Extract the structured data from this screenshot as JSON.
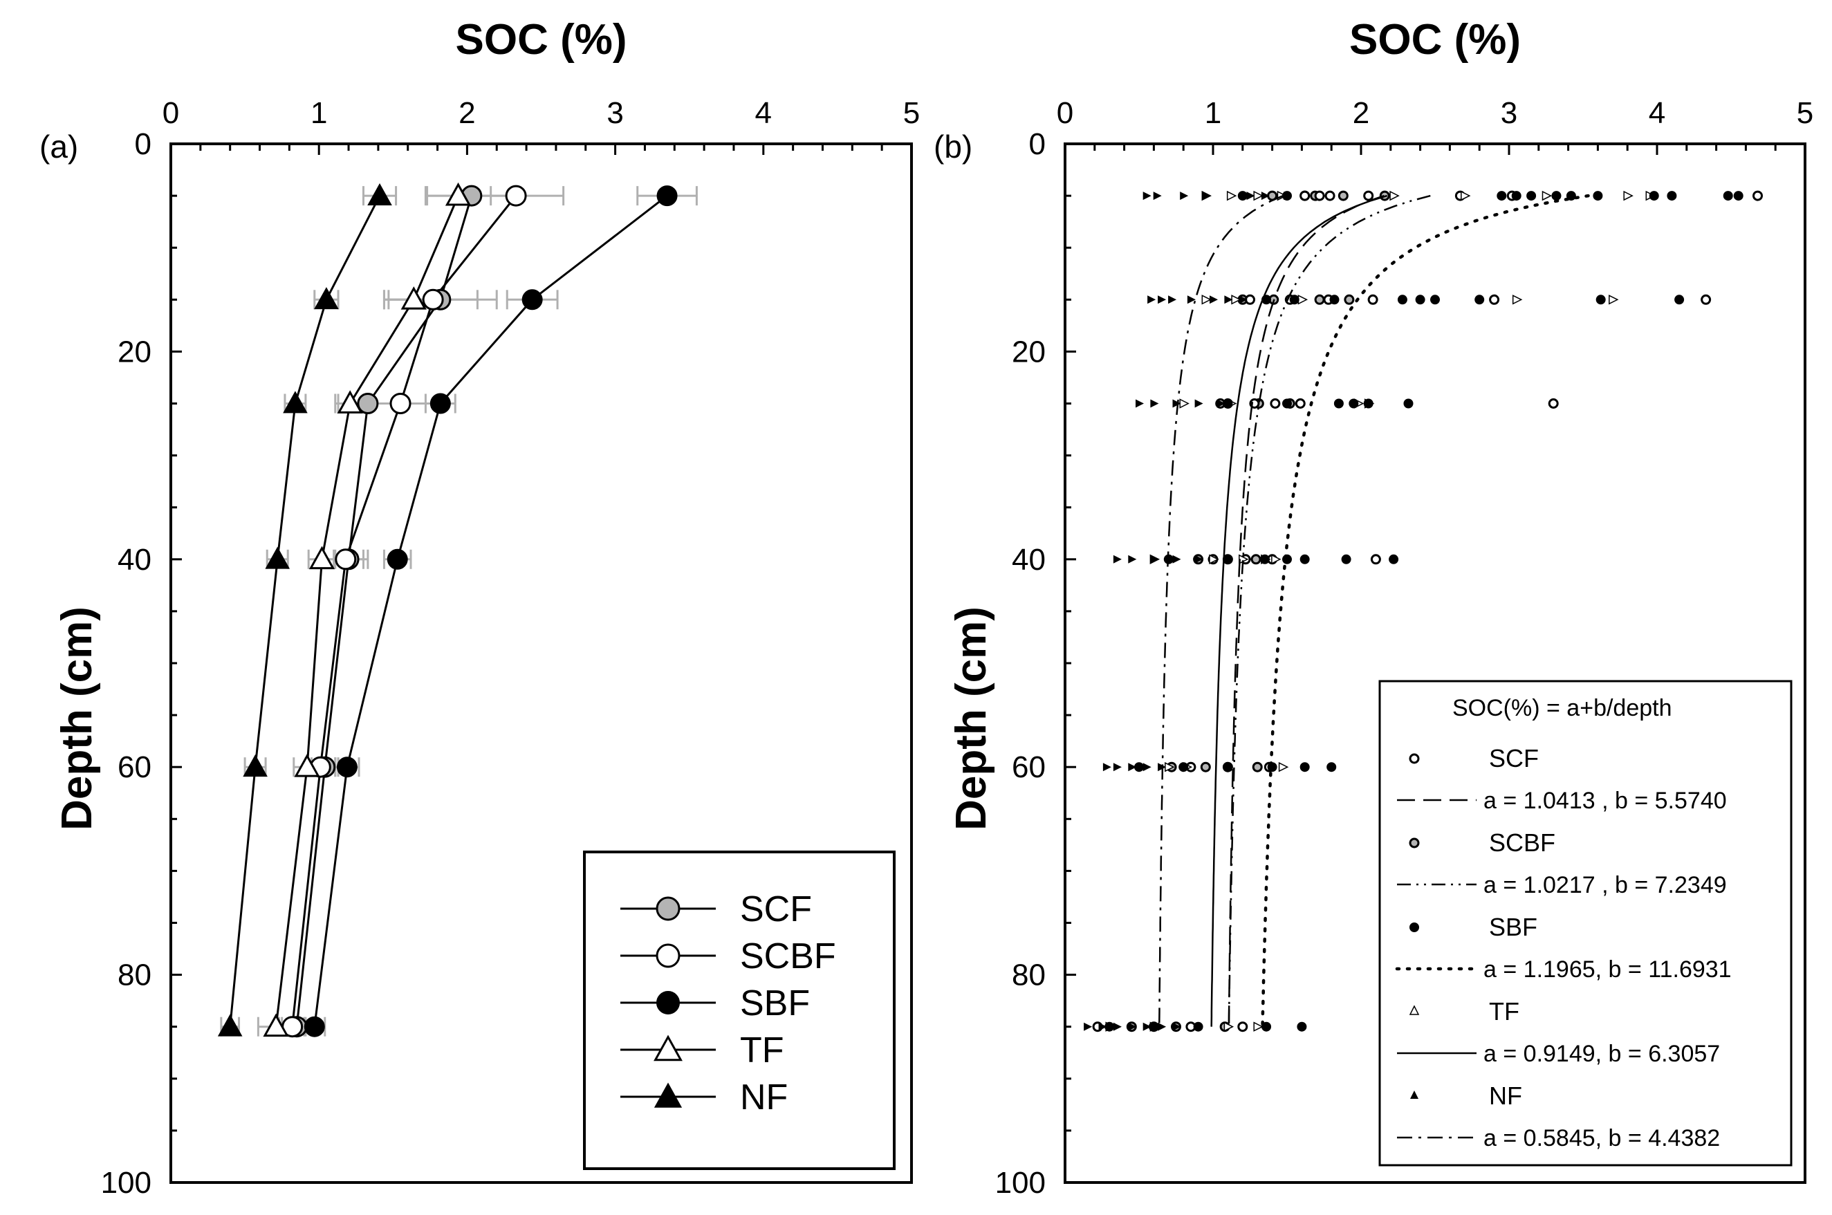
{
  "chart_data": [
    {
      "panel_label": "(a)",
      "type": "line",
      "title": "",
      "xlabel": "SOC (%)",
      "ylabel": "Depth (cm)",
      "xlim": [
        0,
        5
      ],
      "ylim": [
        0,
        100
      ],
      "xaxis_position": "top",
      "yaxis_inverted": true,
      "xticks": [
        "0",
        "1",
        "2",
        "3",
        "4",
        "5"
      ],
      "yticks": [
        "0",
        "20",
        "40",
        "60",
        "80",
        "100"
      ],
      "legend_position": "bottom-right",
      "depths": [
        5,
        15,
        25,
        40,
        60,
        85
      ],
      "series": [
        {
          "name": "SCF",
          "marker": "circle-gray",
          "soc": [
            2.03,
            1.82,
            1.33,
            1.2,
            1.04,
            0.85
          ],
          "err": [
            0.3,
            0.38,
            0.2,
            0.1,
            0.09,
            0.1
          ]
        },
        {
          "name": "SCBF",
          "marker": "circle-open",
          "soc": [
            2.33,
            1.77,
            1.55,
            1.18,
            1.01,
            0.82
          ],
          "err": [
            0.32,
            0.3,
            0.25,
            0.15,
            0.1,
            0.09
          ]
        },
        {
          "name": "SBF",
          "marker": "circle-filled",
          "soc": [
            3.35,
            2.44,
            1.82,
            1.53,
            1.19,
            0.97
          ],
          "err": [
            0.2,
            0.17,
            0.1,
            0.09,
            0.08,
            0.07
          ]
        },
        {
          "name": "TF",
          "marker": "triangle-open",
          "soc": [
            1.94,
            1.64,
            1.21,
            1.02,
            0.92,
            0.71
          ],
          "err": [
            0.22,
            0.2,
            0.1,
            0.09,
            0.09,
            0.12
          ]
        },
        {
          "name": "NF",
          "marker": "triangle-filled",
          "soc": [
            1.41,
            1.05,
            0.84,
            0.72,
            0.57,
            0.4
          ],
          "err": [
            0.11,
            0.08,
            0.07,
            0.07,
            0.07,
            0.06
          ]
        }
      ]
    },
    {
      "panel_label": "(b)",
      "type": "scatter",
      "title": "",
      "xlabel": "SOC (%)",
      "ylabel": "Depth (cm)",
      "xlim": [
        0,
        5
      ],
      "ylim": [
        0,
        100
      ],
      "xaxis_position": "top",
      "yaxis_inverted": true,
      "xticks": [
        "0",
        "1",
        "2",
        "3",
        "4",
        "5"
      ],
      "yticks": [
        "0",
        "20",
        "40",
        "60",
        "80",
        "100"
      ],
      "legend_position": "bottom-right",
      "legend_title": "SOC(%) = a+b/depth",
      "fits": [
        {
          "name": "SCF",
          "a": 1.0413,
          "b": 5.574,
          "label": "a = 1.0413 , b = 5.5740",
          "line_style": "long-dash"
        },
        {
          "name": "SCBF",
          "a": 1.0217,
          "b": 7.2349,
          "label": "a = 1.0217 , b = 7.2349",
          "line_style": "dash-dot-dot"
        },
        {
          "name": "SBF",
          "a": 1.1965,
          "b": 11.6931,
          "label": "a = 1.1965, b = 11.6931",
          "line_style": "dotted"
        },
        {
          "name": "TF",
          "a": 0.9149,
          "b": 6.3057,
          "label": "a = 0.9149, b = 6.3057",
          "line_style": "solid"
        },
        {
          "name": "NF",
          "a": 0.5845,
          "b": 4.4382,
          "label": "a = 0.5845, b = 4.4382",
          "line_style": "dash-dot"
        }
      ],
      "points": {
        "depths": [
          5,
          15,
          25,
          40,
          60,
          85
        ],
        "SCF": [
          [
            1.62,
            1.72,
            1.79,
            2.05,
            2.67,
            3.02,
            4.68
          ],
          [
            1.25,
            1.52,
            1.78,
            2.08,
            2.9,
            4.33
          ],
          [
            1.1,
            1.28,
            1.42,
            1.59,
            3.3
          ],
          [
            1.0,
            1.22,
            1.4,
            2.1
          ],
          [
            0.85,
            1.1,
            1.38
          ],
          [
            0.22,
            0.6,
            0.85,
            1.2
          ]
        ],
        "SCBF": [
          [
            1.4,
            1.62,
            1.69,
            1.88,
            2.16
          ],
          [
            1.2,
            1.41,
            1.72,
            1.92
          ],
          [
            1.05,
            1.31,
            1.52
          ],
          [
            0.9,
            1.1,
            1.29
          ],
          [
            0.72,
            0.95,
            1.3
          ],
          [
            0.45,
            0.75,
            1.08
          ]
        ],
        "SBF": [
          [
            1.2,
            1.5,
            2.95,
            3.05,
            3.15,
            3.32,
            3.42,
            3.6,
            3.98,
            4.1,
            4.48,
            4.55
          ],
          [
            1.36,
            1.55,
            1.82,
            2.28,
            2.4,
            2.5,
            2.8,
            3.62,
            4.15
          ],
          [
            1.1,
            1.5,
            1.85,
            1.95,
            2.05,
            2.32
          ],
          [
            0.7,
            1.1,
            1.35,
            1.5,
            1.62,
            1.9,
            2.22
          ],
          [
            0.5,
            0.8,
            1.1,
            1.4,
            1.62,
            1.8
          ],
          [
            0.3,
            0.6,
            0.9,
            1.36,
            1.6
          ]
        ],
        "TF": [
          [
            0.95,
            1.12,
            1.3,
            1.46,
            2.22,
            2.7,
            3.25,
            3.8,
            3.95
          ],
          [
            0.95,
            1.15,
            1.6,
            3.05,
            3.7
          ],
          [
            0.8,
            1.12,
            1.98,
            2.05
          ],
          [
            0.6,
            1.0,
            1.2,
            1.35,
            1.42
          ],
          [
            0.7,
            0.82,
            1.47
          ],
          [
            0.3,
            0.6,
            1.1,
            1.3
          ]
        ],
        "NF": [
          [
            0.55,
            0.62,
            0.8,
            0.95,
            1.25,
            1.35,
            1.5
          ],
          [
            0.58,
            0.65,
            0.72,
            0.85,
            1.0,
            1.1,
            1.2
          ],
          [
            0.5,
            0.6,
            0.75,
            0.9,
            1.05
          ],
          [
            0.35,
            0.45,
            0.6,
            0.75,
            0.9
          ],
          [
            0.28,
            0.35,
            0.45,
            0.55,
            0.65
          ],
          [
            0.15,
            0.25,
            0.35,
            0.45,
            0.55,
            0.65,
            0.75
          ]
        ]
      }
    }
  ]
}
